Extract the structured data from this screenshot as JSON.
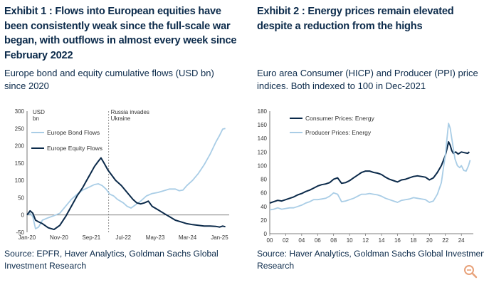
{
  "exhibit1": {
    "title": "Exhibit 1 : Flows into European equities have been consistently weak since the full-scale war began, with outflows in almost every week since February 2022",
    "subtitle": "Europe bond and equity cumulative flows (USD bn) since 2020",
    "source": "Source: EPFR, Haver Analytics, Goldman Sachs Global Investment Research"
  },
  "exhibit2": {
    "title": "Exhibit 2 : Energy prices remain elevated despite a reduction from the highs",
    "subtitle": "Euro area Consumer (HICP) and Producer (PPI) price indices. Both indexed to 100 in Dec-2021",
    "source": "Source: Haver Analytics, Goldman Sachs Global Investment Research"
  },
  "colors": {
    "dark": "#0b2a4a",
    "light": "#a9cde6",
    "axis": "#555555"
  },
  "chart_data": [
    {
      "type": "line",
      "unit_label": "USD bn",
      "annotation": "Russia invades Ukraine",
      "annotation_x": 2.12,
      "xlim": [
        0,
        5.25
      ],
      "ylim": [
        -50,
        300
      ],
      "yticks": [
        -50,
        0,
        50,
        100,
        150,
        200,
        250,
        300
      ],
      "xticks": [
        {
          "pos": 0,
          "label": "Jan-20"
        },
        {
          "pos": 0.83,
          "label": "Nov-20"
        },
        {
          "pos": 1.67,
          "label": "Sep-21"
        },
        {
          "pos": 2.5,
          "label": "Jul-22"
        },
        {
          "pos": 3.33,
          "label": "May-23"
        },
        {
          "pos": 4.17,
          "label": "Mar-24"
        },
        {
          "pos": 5.0,
          "label": "Jan-25"
        }
      ],
      "series": [
        {
          "name": "Europe Bond Flows",
          "color": "light",
          "points": [
            [
              0,
              0
            ],
            [
              0.08,
              5
            ],
            [
              0.15,
              -5
            ],
            [
              0.22,
              -40
            ],
            [
              0.3,
              -35
            ],
            [
              0.4,
              -15
            ],
            [
              0.55,
              -8
            ],
            [
              0.7,
              -2
            ],
            [
              0.85,
              5
            ],
            [
              1.0,
              25
            ],
            [
              1.15,
              45
            ],
            [
              1.3,
              60
            ],
            [
              1.45,
              72
            ],
            [
              1.6,
              80
            ],
            [
              1.75,
              88
            ],
            [
              1.85,
              90
            ],
            [
              1.95,
              85
            ],
            [
              2.05,
              75
            ],
            [
              2.15,
              60
            ],
            [
              2.25,
              55
            ],
            [
              2.35,
              45
            ],
            [
              2.5,
              35
            ],
            [
              2.6,
              25
            ],
            [
              2.7,
              20
            ],
            [
              2.8,
              28
            ],
            [
              2.95,
              40
            ],
            [
              3.1,
              55
            ],
            [
              3.25,
              62
            ],
            [
              3.4,
              65
            ],
            [
              3.55,
              70
            ],
            [
              3.7,
              75
            ],
            [
              3.85,
              75
            ],
            [
              3.95,
              70
            ],
            [
              4.05,
              72
            ],
            [
              4.15,
              85
            ],
            [
              4.3,
              100
            ],
            [
              4.45,
              120
            ],
            [
              4.6,
              145
            ],
            [
              4.75,
              175
            ],
            [
              4.9,
              210
            ],
            [
              5.0,
              230
            ],
            [
              5.08,
              248
            ],
            [
              5.15,
              250
            ]
          ]
        },
        {
          "name": "Europe Equity Flows",
          "color": "dark",
          "points": [
            [
              0,
              0
            ],
            [
              0.08,
              12
            ],
            [
              0.15,
              5
            ],
            [
              0.22,
              -15
            ],
            [
              0.3,
              -20
            ],
            [
              0.4,
              -25
            ],
            [
              0.55,
              -37
            ],
            [
              0.7,
              -42
            ],
            [
              0.85,
              -30
            ],
            [
              1.0,
              -5
            ],
            [
              1.15,
              25
            ],
            [
              1.3,
              55
            ],
            [
              1.45,
              80
            ],
            [
              1.55,
              100
            ],
            [
              1.65,
              120
            ],
            [
              1.75,
              140
            ],
            [
              1.85,
              155
            ],
            [
              1.92,
              165
            ],
            [
              2.0,
              150
            ],
            [
              2.1,
              130
            ],
            [
              2.2,
              115
            ],
            [
              2.3,
              100
            ],
            [
              2.45,
              85
            ],
            [
              2.6,
              65
            ],
            [
              2.75,
              45
            ],
            [
              2.85,
              35
            ],
            [
              2.95,
              32
            ],
            [
              3.05,
              35
            ],
            [
              3.15,
              40
            ],
            [
              3.25,
              25
            ],
            [
              3.4,
              15
            ],
            [
              3.55,
              5
            ],
            [
              3.7,
              -5
            ],
            [
              3.85,
              -15
            ],
            [
              4.0,
              -20
            ],
            [
              4.15,
              -25
            ],
            [
              4.3,
              -28
            ],
            [
              4.45,
              -30
            ],
            [
              4.6,
              -32
            ],
            [
              4.75,
              -32
            ],
            [
              4.9,
              -33
            ],
            [
              5.0,
              -35
            ],
            [
              5.08,
              -32
            ],
            [
              5.15,
              -34
            ]
          ]
        }
      ]
    },
    {
      "type": "line",
      "xlim": [
        0,
        25.5
      ],
      "ylim": [
        0,
        180
      ],
      "yticks": [
        0,
        20,
        40,
        60,
        80,
        100,
        120,
        140,
        160,
        180
      ],
      "xticks": [
        "00",
        "02",
        "04",
        "06",
        "08",
        "10",
        "12",
        "14",
        "16",
        "18",
        "20",
        "22",
        "24"
      ],
      "series": [
        {
          "name": "Consumer Prices: Energy",
          "color": "dark",
          "points": [
            [
              0,
              45
            ],
            [
              0.5,
              47
            ],
            [
              1,
              49
            ],
            [
              1.5,
              48
            ],
            [
              2,
              50
            ],
            [
              2.5,
              52
            ],
            [
              3,
              54
            ],
            [
              3.5,
              57
            ],
            [
              4,
              59
            ],
            [
              4.5,
              62
            ],
            [
              5,
              64
            ],
            [
              5.5,
              67
            ],
            [
              6,
              70
            ],
            [
              6.5,
              72
            ],
            [
              7,
              73
            ],
            [
              7.5,
              75
            ],
            [
              8,
              80
            ],
            [
              8.5,
              82
            ],
            [
              9,
              74
            ],
            [
              9.5,
              75
            ],
            [
              10,
              78
            ],
            [
              10.5,
              82
            ],
            [
              11,
              86
            ],
            [
              11.5,
              90
            ],
            [
              12,
              92
            ],
            [
              12.5,
              92
            ],
            [
              13,
              90
            ],
            [
              13.5,
              89
            ],
            [
              14,
              87
            ],
            [
              14.5,
              83
            ],
            [
              15,
              80
            ],
            [
              15.5,
              78
            ],
            [
              16,
              76
            ],
            [
              16.5,
              79
            ],
            [
              17,
              80
            ],
            [
              17.5,
              82
            ],
            [
              18,
              84
            ],
            [
              18.5,
              85
            ],
            [
              19,
              84
            ],
            [
              19.5,
              83
            ],
            [
              20,
              79
            ],
            [
              20.5,
              82
            ],
            [
              21,
              90
            ],
            [
              21.5,
              100
            ],
            [
              22,
              115
            ],
            [
              22.2,
              125
            ],
            [
              22.4,
              135
            ],
            [
              22.6,
              130
            ],
            [
              22.8,
              122
            ],
            [
              23,
              118
            ],
            [
              23.3,
              120
            ],
            [
              23.6,
              117
            ],
            [
              24,
              120
            ],
            [
              24.4,
              119
            ],
            [
              24.8,
              118
            ],
            [
              25,
              120
            ]
          ]
        },
        {
          "name": "Producer Prices: Energy",
          "color": "light",
          "points": [
            [
              0,
              35
            ],
            [
              0.5,
              36
            ],
            [
              1,
              38
            ],
            [
              1.5,
              36
            ],
            [
              2,
              37
            ],
            [
              2.5,
              38
            ],
            [
              3,
              38
            ],
            [
              3.5,
              40
            ],
            [
              4,
              42
            ],
            [
              4.5,
              45
            ],
            [
              5,
              47
            ],
            [
              5.5,
              50
            ],
            [
              6,
              50
            ],
            [
              6.5,
              51
            ],
            [
              7,
              52
            ],
            [
              7.5,
              55
            ],
            [
              8,
              60
            ],
            [
              8.5,
              58
            ],
            [
              9,
              47
            ],
            [
              9.5,
              48
            ],
            [
              10,
              50
            ],
            [
              10.5,
              52
            ],
            [
              11,
              55
            ],
            [
              11.5,
              58
            ],
            [
              12,
              58
            ],
            [
              12.5,
              59
            ],
            [
              13,
              58
            ],
            [
              13.5,
              57
            ],
            [
              14,
              55
            ],
            [
              14.5,
              52
            ],
            [
              15,
              50
            ],
            [
              15.5,
              48
            ],
            [
              16,
              46
            ],
            [
              16.5,
              49
            ],
            [
              17,
              50
            ],
            [
              17.5,
              51
            ],
            [
              18,
              53
            ],
            [
              18.5,
              52
            ],
            [
              19,
              51
            ],
            [
              19.5,
              50
            ],
            [
              20,
              46
            ],
            [
              20.5,
              48
            ],
            [
              21,
              58
            ],
            [
              21.5,
              75
            ],
            [
              21.8,
              100
            ],
            [
              22,
              115
            ],
            [
              22.2,
              140
            ],
            [
              22.4,
              162
            ],
            [
              22.6,
              155
            ],
            [
              22.8,
              140
            ],
            [
              23,
              125
            ],
            [
              23.2,
              110
            ],
            [
              23.5,
              100
            ],
            [
              23.8,
              97
            ],
            [
              24,
              100
            ],
            [
              24.3,
              93
            ],
            [
              24.6,
              92
            ],
            [
              24.9,
              100
            ],
            [
              25.1,
              108
            ]
          ]
        }
      ]
    }
  ]
}
